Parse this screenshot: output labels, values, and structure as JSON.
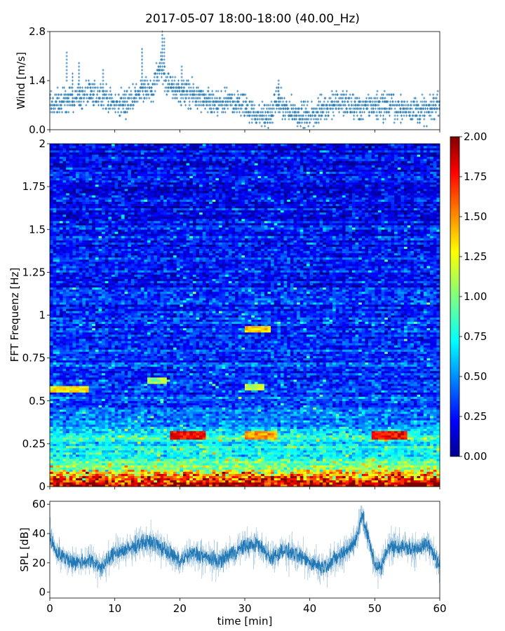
{
  "figure": {
    "title": "2017-05-07 18:00-18:00 (40.00_Hz)"
  },
  "chart_data": [
    {
      "id": "wind",
      "type": "scatter",
      "ylabel": "Wind [m/s]",
      "xlabel": "",
      "xlim": [
        0,
        60
      ],
      "ylim": [
        0,
        2.8
      ],
      "y_ticks": [
        "0.0",
        "1.4",
        "2.8"
      ],
      "y_tick_values": [
        0,
        1.4,
        2.8
      ],
      "x_tick_values": [
        0,
        10,
        20,
        30,
        40,
        50,
        60
      ],
      "color": "#1f77b4",
      "profile_t": [
        0,
        2,
        4,
        6,
        8,
        10,
        12,
        14,
        16,
        17,
        18,
        20,
        22,
        24,
        26,
        28,
        30,
        32,
        34,
        35,
        36,
        38,
        40,
        42,
        44,
        46,
        48,
        50,
        52,
        54,
        56,
        58,
        60
      ],
      "profile_y": [
        0.7,
        0.8,
        0.9,
        1.0,
        1.0,
        0.7,
        0.8,
        1.1,
        1.2,
        1.9,
        1.3,
        1.1,
        1.0,
        0.8,
        0.7,
        0.8,
        0.7,
        0.4,
        0.4,
        0.9,
        0.6,
        0.5,
        0.4,
        0.6,
        0.8,
        0.7,
        0.6,
        0.7,
        0.7,
        0.6,
        0.6,
        0.5,
        0.8
      ],
      "peak_values": [
        [
          2.6,
          2.2
        ],
        [
          3.5,
          1.6
        ],
        [
          4.5,
          1.9
        ],
        [
          8.2,
          1.7
        ],
        [
          14.2,
          2.3
        ],
        [
          17.3,
          2.8
        ],
        [
          17.6,
          2.6
        ],
        [
          20.3,
          1.8
        ],
        [
          35.2,
          1.4
        ]
      ]
    },
    {
      "id": "spectrogram",
      "type": "heatmap",
      "ylabel": "FFT Frequenz [Hz]",
      "xlabel": "",
      "xlim": [
        0,
        60
      ],
      "ylim": [
        0,
        2
      ],
      "y_ticks": [
        "0",
        "0.25",
        "0.5",
        "0.75",
        "1",
        "1.25",
        "1.5",
        "1.75",
        "2"
      ],
      "y_tick_values": [
        0,
        0.25,
        0.5,
        0.75,
        1,
        1.25,
        1.5,
        1.75,
        2
      ],
      "colormap": "jet",
      "clim": [
        0,
        2
      ],
      "colorbar_ticks": [
        "0.00",
        "0.25",
        "0.50",
        "0.75",
        "1.00",
        "1.25",
        "1.50",
        "1.75",
        "2.00"
      ],
      "colorbar_tick_values": [
        0,
        0.25,
        0.5,
        0.75,
        1,
        1.25,
        1.5,
        1.75,
        2
      ],
      "freq_profile_f": [
        0,
        0.02,
        0.05,
        0.08,
        0.12,
        0.18,
        0.25,
        0.3,
        0.35,
        0.45,
        0.5,
        0.6,
        0.75,
        1.0,
        1.5,
        2.0
      ],
      "freq_profile_v": [
        1.8,
        1.9,
        1.6,
        1.3,
        1.0,
        0.8,
        0.75,
        0.8,
        0.55,
        0.45,
        0.4,
        0.38,
        0.35,
        0.32,
        0.28,
        0.25
      ],
      "hot_bands": [
        {
          "t0": 18.5,
          "t1": 24,
          "f": 0.3,
          "v": 1.9
        },
        {
          "t0": 49.5,
          "t1": 55,
          "f": 0.3,
          "v": 1.9
        },
        {
          "t0": 30,
          "t1": 35,
          "f": 0.3,
          "v": 1.6
        },
        {
          "t0": 0,
          "t1": 6,
          "f": 0.57,
          "v": 1.4
        },
        {
          "t0": 30,
          "t1": 34,
          "f": 0.92,
          "v": 1.5
        },
        {
          "t0": 15,
          "t1": 18,
          "f": 0.62,
          "v": 1.2
        },
        {
          "t0": 30,
          "t1": 33,
          "f": 0.58,
          "v": 1.3
        }
      ]
    },
    {
      "id": "spl",
      "type": "line",
      "ylabel": "SPL [dB]",
      "xlabel": "time [min]",
      "xlim": [
        0,
        60
      ],
      "ylim": [
        -4,
        62
      ],
      "y_ticks": [
        "0",
        "20",
        "40",
        "60"
      ],
      "y_tick_values": [
        0,
        20,
        40,
        60
      ],
      "x_ticks": [
        "0",
        "10",
        "20",
        "30",
        "40",
        "50",
        "60"
      ],
      "x_tick_values": [
        0,
        10,
        20,
        30,
        40,
        50,
        60
      ],
      "color": "#1f77b4",
      "anchor_t": [
        0,
        1,
        2,
        4,
        6,
        8,
        10,
        12,
        14,
        16,
        18,
        20,
        22,
        24,
        26,
        28,
        30,
        32,
        34,
        36,
        38,
        40,
        42,
        44,
        46,
        47,
        48,
        49,
        50,
        51,
        52,
        54,
        56,
        58,
        59,
        60
      ],
      "anchor_y": [
        38,
        27,
        24,
        20,
        22,
        17,
        27,
        29,
        34,
        34,
        28,
        21,
        27,
        24,
        21,
        27,
        31,
        33,
        23,
        29,
        25,
        21,
        17,
        23,
        30,
        34,
        53,
        37,
        19,
        16,
        31,
        31,
        29,
        33,
        27,
        17
      ]
    }
  ]
}
